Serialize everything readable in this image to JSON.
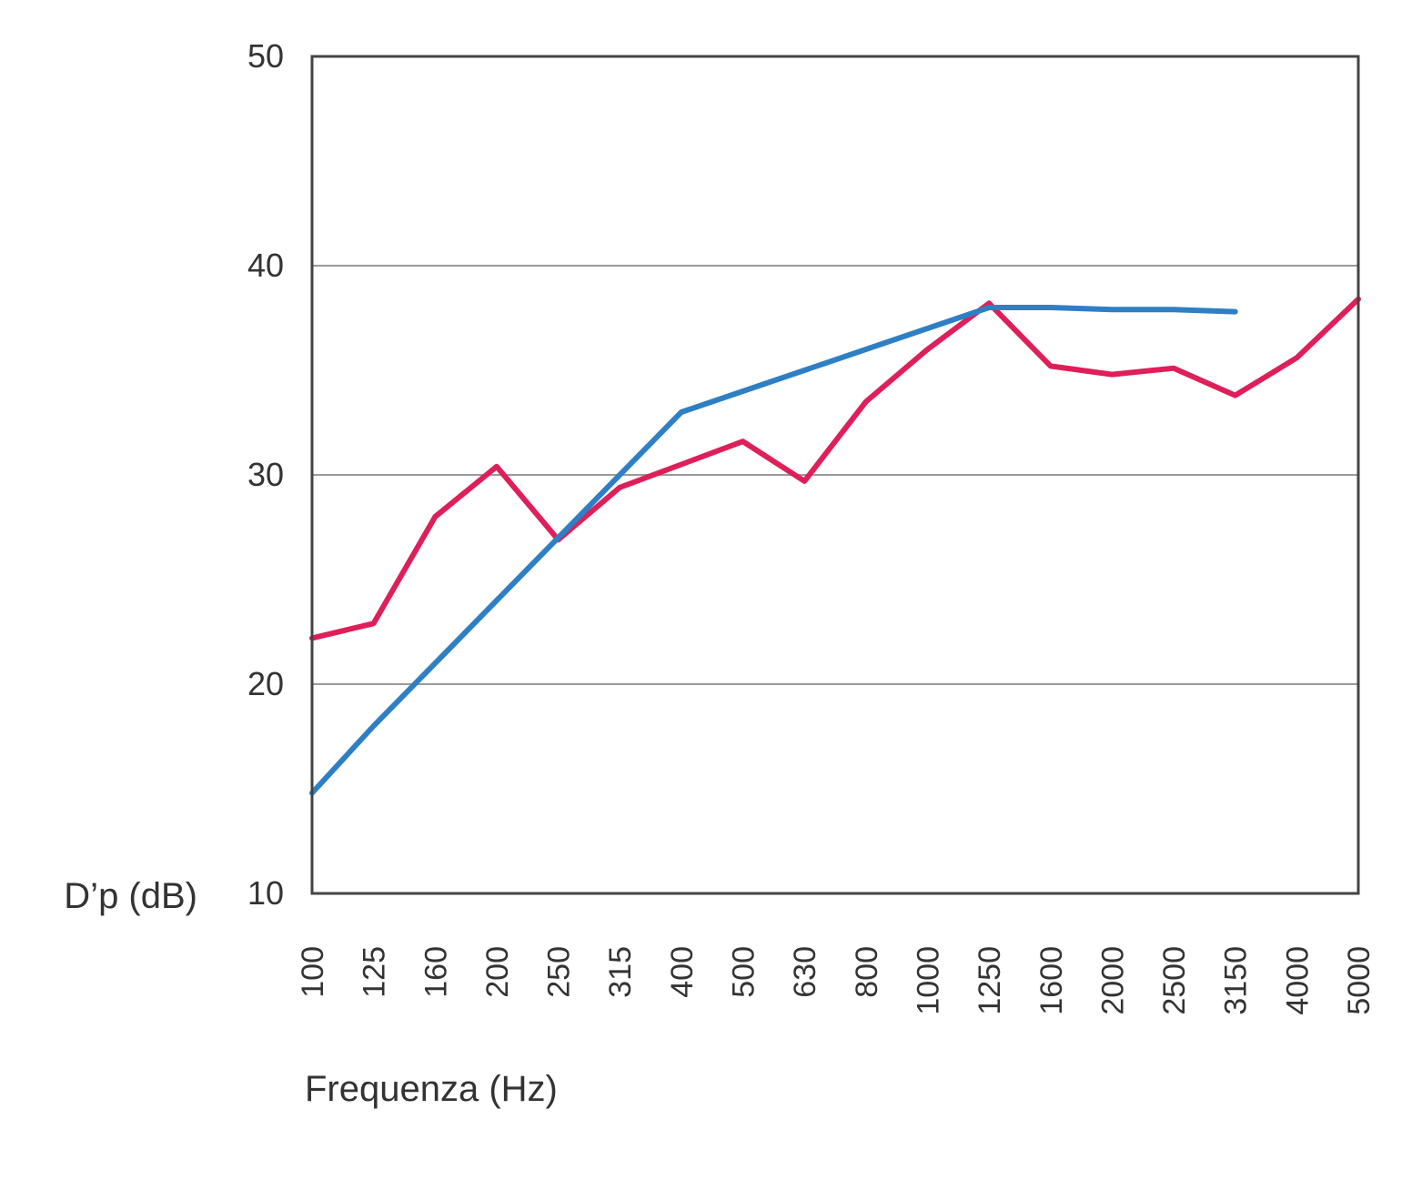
{
  "chart_data": {
    "type": "line",
    "xlabel": "Frequenza (Hz)",
    "ylabel": "D’p (dB)",
    "ylim": [
      10,
      50
    ],
    "yticks": [
      10,
      20,
      30,
      40,
      50
    ],
    "grid": "horizontal",
    "categories": [
      "100",
      "125",
      "160",
      "200",
      "250",
      "315",
      "400",
      "500",
      "630",
      "800",
      "1000",
      "1250",
      "1600",
      "2000",
      "2500",
      "3150",
      "4000",
      "5000"
    ],
    "series": [
      {
        "color": "#de1f59",
        "values": [
          22.2,
          22.9,
          28.0,
          30.4,
          26.9,
          29.4,
          30.5,
          31.6,
          29.7,
          33.5,
          36.0,
          38.2,
          35.2,
          34.8,
          35.1,
          33.8,
          35.6,
          38.4
        ]
      },
      {
        "color": "#2e7fc3",
        "values": [
          14.8,
          18.0,
          21.0,
          24.0,
          27.0,
          30.0,
          33.0,
          34.0,
          35.0,
          36.0,
          37.0,
          38.0,
          38.0,
          37.9,
          37.9,
          37.8,
          null,
          null
        ]
      }
    ]
  }
}
